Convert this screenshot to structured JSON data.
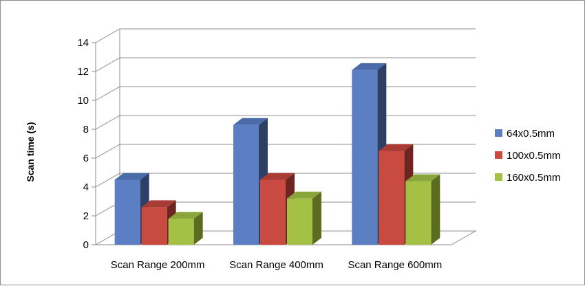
{
  "chart_data": {
    "type": "bar",
    "title": "",
    "xlabel": "",
    "ylabel": "Scan time (s)",
    "categories": [
      "Scan Range 200mm",
      "Scan Range 400mm",
      "Scan Range 600mm"
    ],
    "series": [
      {
        "name": "64x0.5mm",
        "values": [
          4.5,
          8.3,
          12.1
        ]
      },
      {
        "name": "100x0.5mm",
        "values": [
          2.6,
          4.5,
          6.5
        ]
      },
      {
        "name": "160x0.5mm",
        "values": [
          1.8,
          3.2,
          4.4
        ]
      }
    ],
    "ylim": [
      0,
      14
    ],
    "yticks": [
      0,
      2,
      4,
      6,
      8,
      10,
      12,
      14
    ],
    "grid": true,
    "legend": "right",
    "colors": {
      "64x0.5mm": {
        "front": "#5b7fc2",
        "side": "#2e3f66",
        "top": "#4a6aa8"
      },
      "100x0.5mm": {
        "front": "#c94a41",
        "side": "#6e2521",
        "top": "#a83b33"
      },
      "160x0.5mm": {
        "front": "#a4c045",
        "side": "#5b6b20",
        "top": "#8aa53a"
      }
    }
  }
}
